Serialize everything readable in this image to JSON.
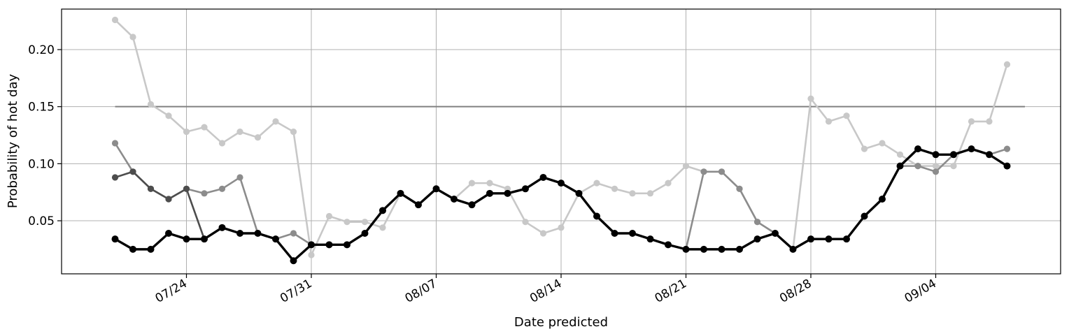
{
  "chart_data": {
    "type": "line",
    "title": "",
    "xlabel": "Date predicted",
    "ylabel": "Probability of hot day",
    "x_start": "07/20",
    "x_tick_labels": [
      "07/24",
      "07/31",
      "08/07",
      "08/14",
      "08/21",
      "08/28",
      "09/04"
    ],
    "x_tick_dates": [
      "07/24",
      "07/31",
      "08/07",
      "08/14",
      "08/21",
      "08/28",
      "09/04"
    ],
    "xlim": [
      "07/17",
      "09/11"
    ],
    "y_ticks": [
      0.05,
      0.1,
      0.15,
      0.2
    ],
    "y_tick_labels": [
      "0.05",
      "0.10",
      "0.15",
      "0.20"
    ],
    "ylim": [
      0.0035,
      0.2355
    ],
    "grid": true,
    "threshold": {
      "value": 0.15,
      "from": "07/20",
      "to": "09/09",
      "color": "#808080"
    },
    "series": [
      {
        "color": "#c8c8c8",
        "values": [
          0.226,
          0.211,
          0.152,
          0.142,
          0.128,
          0.132,
          0.118,
          0.128,
          0.123,
          0.137,
          0.128,
          0.02,
          0.054,
          0.049,
          0.049,
          0.044,
          0.074,
          0.064,
          0.078,
          0.069,
          0.083,
          0.083,
          0.078,
          0.049,
          0.039,
          0.044,
          0.074,
          0.083,
          0.078,
          0.074,
          0.074,
          0.083,
          0.098,
          0.093,
          0.093,
          0.078,
          0.049,
          0.039,
          0.025,
          0.157,
          0.137,
          0.142,
          0.113,
          0.118,
          0.108,
          0.098,
          0.098,
          0.098,
          0.137,
          0.137,
          0.187
        ]
      },
      {
        "color": "#8c8c8c",
        "values": [
          0.118,
          0.093,
          0.078,
          0.069,
          0.078,
          0.074,
          0.078,
          0.088,
          0.039,
          0.034,
          0.039,
          0.029,
          0.029,
          0.029,
          0.039,
          0.059,
          0.074,
          0.064,
          0.078,
          0.069,
          0.064,
          0.074,
          0.074,
          0.078,
          0.088,
          0.083,
          0.074,
          0.054,
          0.039,
          0.039,
          0.034,
          0.029,
          0.025,
          0.093,
          0.093,
          0.078,
          0.049,
          0.039,
          0.025,
          0.034,
          0.034,
          0.034,
          0.054,
          0.069,
          0.098,
          0.098,
          0.093,
          0.108,
          0.113,
          0.108,
          0.113
        ]
      },
      {
        "color": "#4d4d4d",
        "values": [
          0.088,
          0.093,
          0.078,
          0.069,
          0.078,
          0.034,
          0.044,
          0.039,
          0.039,
          0.034,
          0.015,
          0.029,
          0.029,
          0.029,
          0.039,
          0.059,
          0.074,
          0.064,
          0.078,
          0.069,
          0.064,
          0.074,
          0.074,
          0.078,
          0.088,
          0.083,
          0.074,
          0.054,
          0.039,
          0.039,
          0.034,
          0.029,
          0.025,
          0.025,
          0.025,
          0.025,
          0.034,
          0.039,
          0.025,
          0.034,
          0.034,
          0.034,
          0.054,
          0.069,
          0.098,
          0.113,
          0.108,
          0.108,
          0.113,
          0.108,
          0.098
        ]
      },
      {
        "color": "#000000",
        "values": [
          0.034,
          0.025,
          0.025,
          0.039,
          0.034,
          0.034,
          0.044,
          0.039,
          0.039,
          0.034,
          0.015,
          0.029,
          0.029,
          0.029,
          0.039,
          0.059,
          0.074,
          0.064,
          0.078,
          0.069,
          0.064,
          0.074,
          0.074,
          0.078,
          0.088,
          0.083,
          0.074,
          0.054,
          0.039,
          0.039,
          0.034,
          0.029,
          0.025,
          0.025,
          0.025,
          0.025,
          0.034,
          0.039,
          0.025,
          0.034,
          0.034,
          0.034,
          0.054,
          0.069,
          0.098,
          0.113,
          0.108,
          0.108,
          0.113,
          0.108,
          0.098
        ]
      }
    ]
  }
}
